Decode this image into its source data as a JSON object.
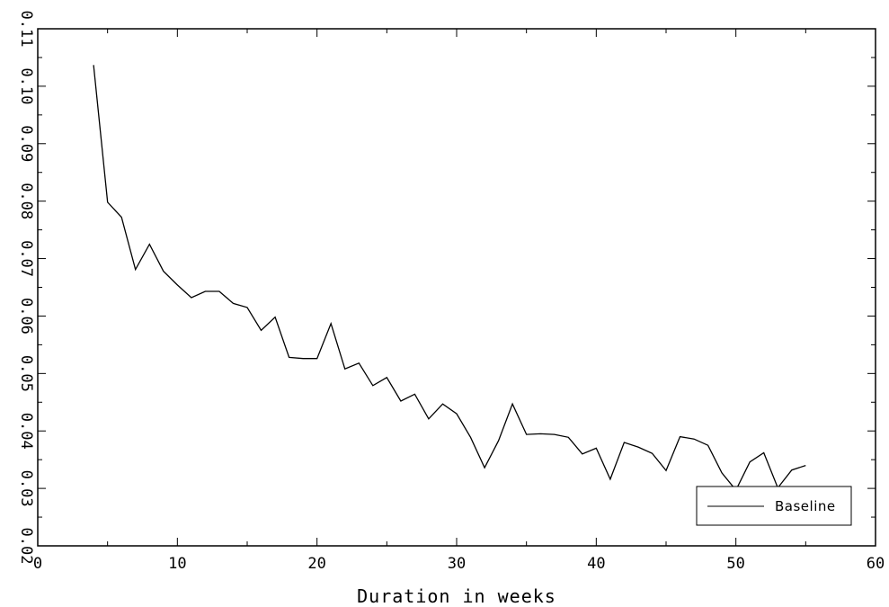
{
  "chart_data": {
    "type": "line",
    "title": "",
    "xlabel": "Duration in weeks",
    "ylabel": "",
    "xlim": [
      0,
      60
    ],
    "ylim": [
      0.02,
      0.11
    ],
    "x_ticks": [
      "0",
      "10",
      "20",
      "30",
      "40",
      "50",
      "60"
    ],
    "y_ticks": [
      "0.02",
      "0.03",
      "0.04",
      "0.05",
      "0.06",
      "0.07",
      "0.08",
      "0.09",
      "0.10",
      "0.11"
    ],
    "grid": false,
    "legend_position": "bottom-right",
    "series": [
      {
        "name": "Baseline",
        "color": "#000000",
        "x": [
          4,
          5,
          6,
          7,
          8,
          9,
          10,
          11,
          12,
          13,
          14,
          15,
          16,
          17,
          18,
          19,
          20,
          21,
          22,
          23,
          24,
          25,
          26,
          27,
          28,
          29,
          30,
          31,
          32,
          33,
          34,
          35,
          36,
          37,
          38,
          39,
          40,
          41,
          42,
          43,
          44,
          45,
          46,
          47,
          48,
          49,
          50,
          51,
          52,
          53,
          54,
          55
        ],
        "y": [
          0.1037,
          0.0798,
          0.0772,
          0.0681,
          0.0725,
          0.0678,
          0.0654,
          0.0632,
          0.0643,
          0.0643,
          0.0622,
          0.0615,
          0.0575,
          0.0598,
          0.0528,
          0.0526,
          0.0526,
          0.0587,
          0.0508,
          0.0518,
          0.0479,
          0.0493,
          0.0452,
          0.0464,
          0.0421,
          0.0447,
          0.043,
          0.0389,
          0.0336,
          0.0383,
          0.0447,
          0.0394,
          0.0395,
          0.0394,
          0.0389,
          0.036,
          0.037,
          0.0316,
          0.038,
          0.0372,
          0.0361,
          0.0331,
          0.039,
          0.0386,
          0.0375,
          0.0327,
          0.0297,
          0.0346,
          0.0362,
          0.0301,
          0.0332,
          0.034
        ]
      }
    ]
  }
}
